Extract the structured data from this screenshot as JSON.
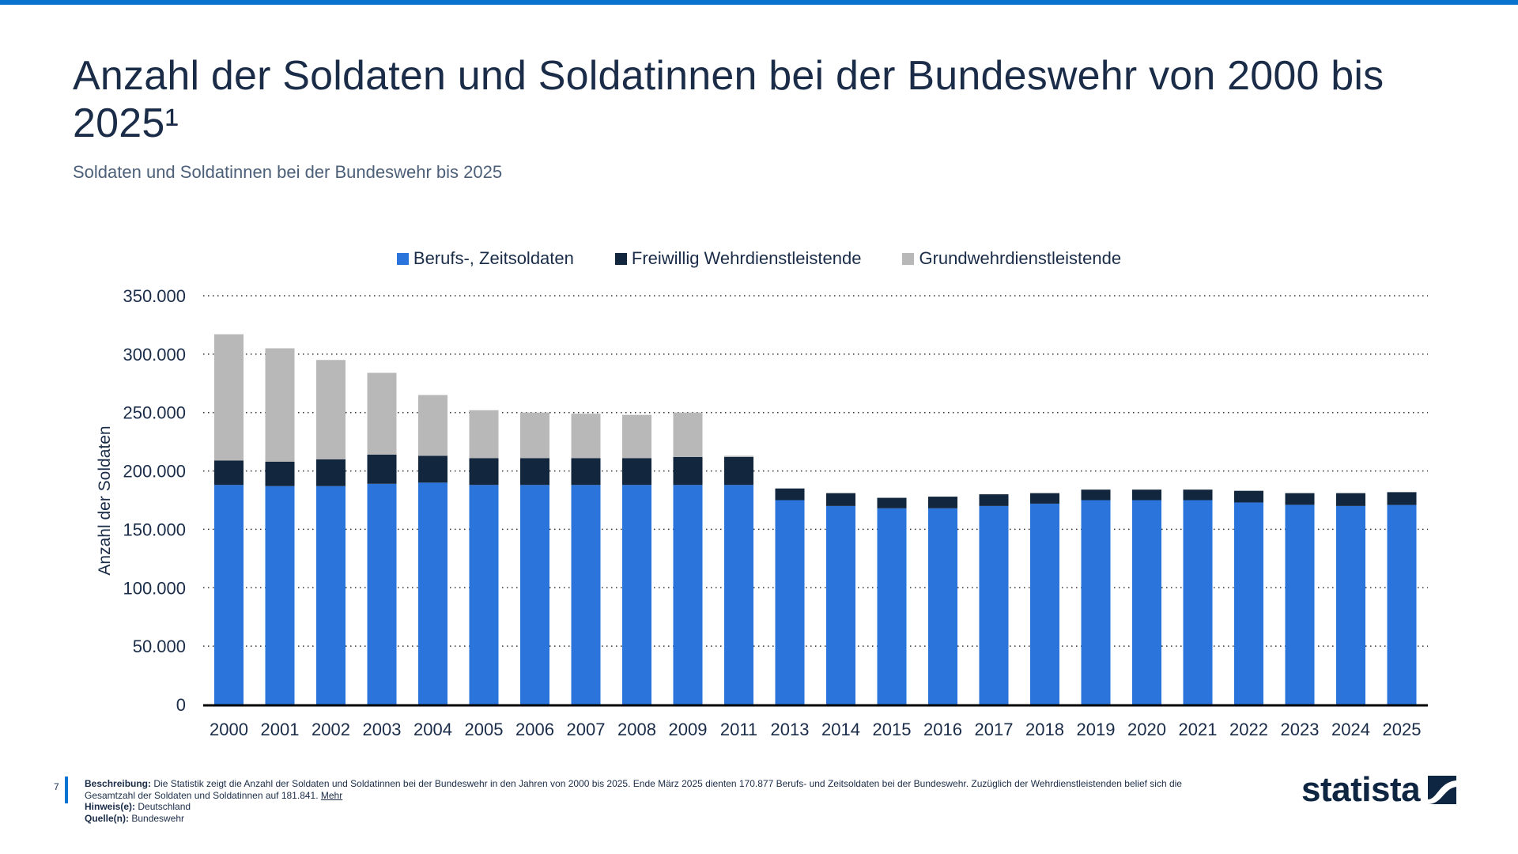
{
  "header": {
    "title": "Anzahl der Soldaten und Soldatinnen bei der Bundeswehr von 2000 bis 2025¹",
    "subtitle": "Soldaten und Soldatinnen bei der Bundeswehr bis 2025"
  },
  "colors": {
    "accent": "#0a73d0",
    "berufs": "#2a74db",
    "freiwillig": "#12263e",
    "grundwehr": "#b8b8b8"
  },
  "chart_data": {
    "type": "bar",
    "stacked": true,
    "title": "Anzahl der Soldaten und Soldatinnen bei der Bundeswehr von 2000 bis 2025¹",
    "subtitle": "Soldaten und Soldatinnen bei der Bundeswehr bis 2025",
    "xlabel": "",
    "ylabel": "Anzahl der Soldaten",
    "ylim": [
      0,
      350000
    ],
    "yticks": [
      0,
      50000,
      100000,
      150000,
      200000,
      250000,
      300000,
      350000
    ],
    "ytick_labels": [
      "0",
      "50.000",
      "100.000",
      "150.000",
      "200.000",
      "250.000",
      "300.000",
      "350.000"
    ],
    "grid": true,
    "legend_position": "top-center",
    "categories": [
      "2000",
      "2001",
      "2002",
      "2003",
      "2004",
      "2005",
      "2006",
      "2007",
      "2008",
      "2009",
      "2011",
      "2013",
      "2014",
      "2015",
      "2016",
      "2017",
      "2018",
      "2019",
      "2020",
      "2021",
      "2022",
      "2023",
      "2024",
      "2025"
    ],
    "series": [
      {
        "name": "Berufs-, Zeitsoldaten",
        "color": "#2a74db",
        "values": [
          188000,
          187000,
          187000,
          189000,
          190000,
          188000,
          188000,
          188000,
          188000,
          188000,
          188000,
          175000,
          170000,
          168000,
          168000,
          170000,
          172000,
          175000,
          175000,
          175000,
          173000,
          171000,
          170000,
          170877
        ]
      },
      {
        "name": "Freiwillig Wehrdienstleistende",
        "color": "#12263e",
        "values": [
          21000,
          21000,
          23000,
          25000,
          23000,
          23000,
          23000,
          23000,
          23000,
          24000,
          24000,
          10000,
          11000,
          9000,
          10000,
          10000,
          9000,
          9000,
          9000,
          9000,
          10000,
          10000,
          11000,
          10964
        ]
      },
      {
        "name": "Grundwehrdienstleistende",
        "color": "#b8b8b8",
        "values": [
          108000,
          97000,
          85000,
          70000,
          52000,
          41000,
          39000,
          38000,
          37000,
          38000,
          1000,
          0,
          0,
          0,
          0,
          0,
          0,
          0,
          0,
          0,
          0,
          0,
          0,
          0
        ]
      }
    ]
  },
  "footer": {
    "page_number": "7",
    "description_label": "Beschreibung:",
    "description_text": "Die Statistik zeigt die Anzahl der Soldaten und Soldatinnen bei der Bundeswehr in den Jahren von 2000 bis 2025. Ende März 2025 dienten 170.877 Berufs- und Zeitsoldaten bei der Bundeswehr. Zuzüglich der Wehrdienstleistenden belief sich die Gesamtzahl der Soldaten und Soldatinnen auf 181.841.",
    "more_link": "Mehr",
    "notes_label": "Hinweis(e):",
    "notes_text": "Deutschland",
    "source_label": "Quelle(n):",
    "source_text": "Bundeswehr",
    "logo_text": "statista"
  }
}
